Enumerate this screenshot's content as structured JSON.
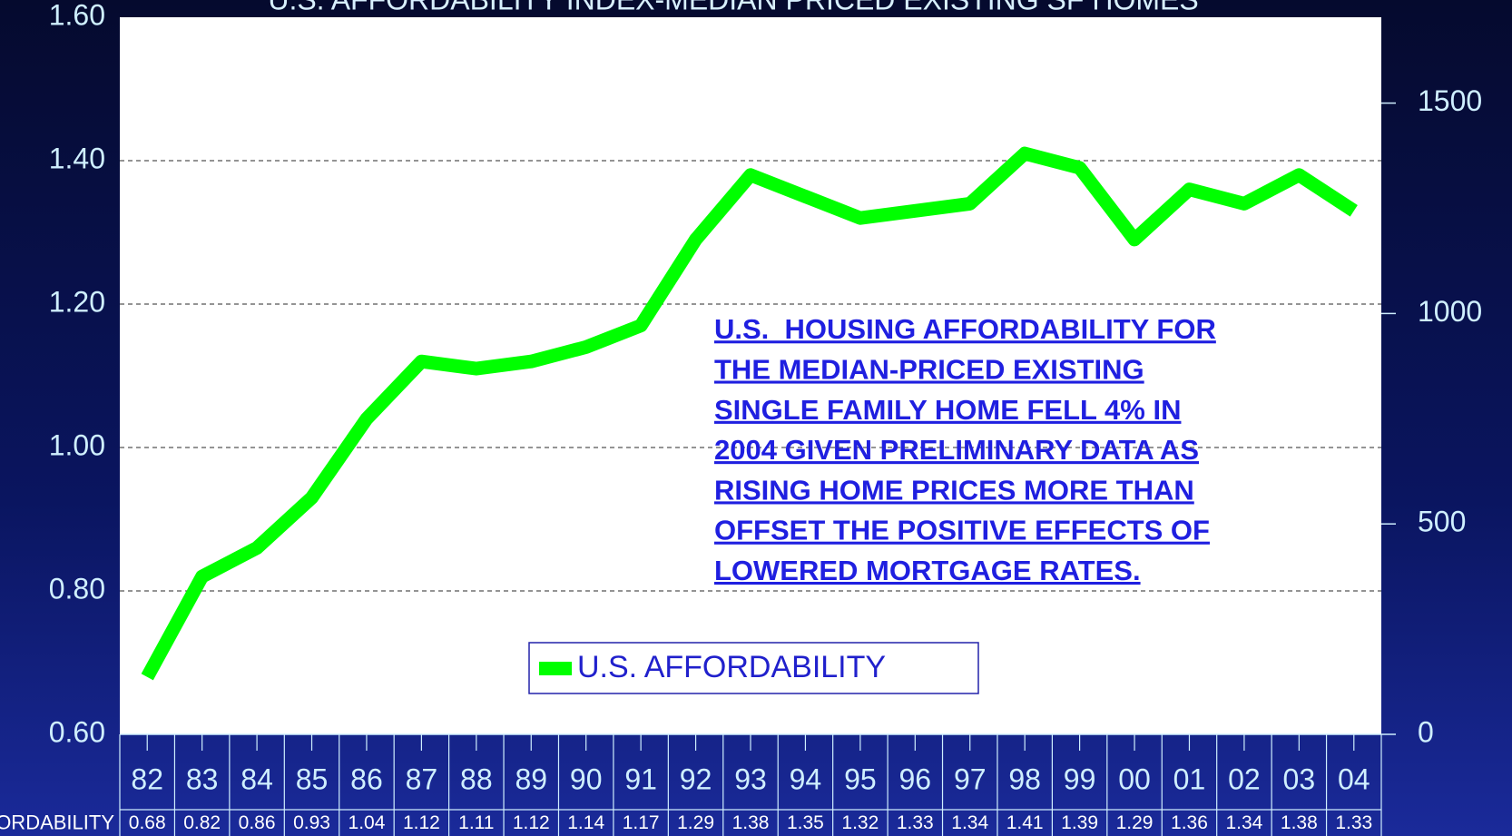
{
  "chart_data": {
    "type": "line",
    "title": "U.S. AFFORDABILITY INDEX-MEDIAN PRICED EXISTING SF HOMES",
    "categories": [
      "82",
      "83",
      "84",
      "85",
      "86",
      "87",
      "88",
      "89",
      "90",
      "91",
      "92",
      "93",
      "94",
      "95",
      "96",
      "97",
      "98",
      "99",
      "00",
      "01",
      "02",
      "03",
      "04"
    ],
    "series": [
      {
        "name": "U.S. AFFORDABILITY",
        "color": "#00ff00",
        "values": [
          0.68,
          0.82,
          0.86,
          0.93,
          1.04,
          1.12,
          1.11,
          1.12,
          1.14,
          1.17,
          1.29,
          1.38,
          1.35,
          1.32,
          1.33,
          1.34,
          1.41,
          1.39,
          1.29,
          1.36,
          1.34,
          1.38,
          1.33
        ]
      }
    ],
    "ylim": [
      0.6,
      1.6
    ],
    "yticks": [
      {
        "value": 0.6,
        "label": "0.60"
      },
      {
        "value": 0.8,
        "label": "0.80"
      },
      {
        "value": 1.0,
        "label": "1.00"
      },
      {
        "value": 1.2,
        "label": "1.20"
      },
      {
        "value": 1.4,
        "label": "1.40"
      },
      {
        "value": 1.6,
        "label": "1.60"
      }
    ],
    "y2lim": [
      0,
      1704
    ],
    "y2ticks": [
      0,
      500,
      1000,
      1500
    ],
    "grid": true,
    "annotation": [
      "U.S.  HOUSING AFFORDABILITY FOR",
      "THE MEDIAN-PRICED EXISTING",
      "SINGLE FAMILY HOME FELL 4% IN",
      "2004 GIVEN PRELIMINARY DATA AS",
      "RISING HOME PRICES MORE THAN",
      "OFFSET THE POSITIVE EFFECTS OF",
      "LOWERED MORTGAGE RATES."
    ]
  }
}
